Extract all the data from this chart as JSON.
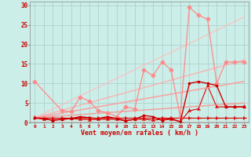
{
  "background_color": "#cceee8",
  "grid_color": "#aacccc",
  "xlabel": "Vent moyen/en rafales ( km/h )",
  "xlabel_color": "#cc0000",
  "tick_color": "#cc0000",
  "xlim": [
    -0.5,
    23.5
  ],
  "ylim": [
    0,
    31
  ],
  "yticks": [
    0,
    5,
    10,
    15,
    20,
    25,
    30
  ],
  "xticks": [
    0,
    1,
    2,
    3,
    4,
    5,
    6,
    7,
    8,
    9,
    10,
    11,
    12,
    13,
    14,
    15,
    16,
    17,
    18,
    19,
    20,
    21,
    22,
    23
  ],
  "lines": [
    {
      "x": [
        0,
        1,
        2,
        3,
        4,
        5,
        6,
        7,
        8,
        9,
        10,
        11,
        12,
        13,
        14,
        15,
        16,
        17,
        18,
        19,
        20,
        21,
        22,
        23
      ],
      "y": [
        1.2,
        1.2,
        1.2,
        1.2,
        1.2,
        1.2,
        1.2,
        1.2,
        1.2,
        1.2,
        1.2,
        1.2,
        1.2,
        1.2,
        1.2,
        1.2,
        1.2,
        1.2,
        1.2,
        1.2,
        1.2,
        1.2,
        1.2,
        1.2
      ],
      "color": "#dd0000",
      "alpha": 1.0,
      "linewidth": 0.8,
      "marker": "4",
      "markersize": 4
    },
    {
      "x": [
        0,
        1,
        2,
        3,
        4,
        5,
        6,
        7,
        8,
        9,
        10,
        11,
        12,
        13,
        14,
        15,
        16,
        17,
        18,
        19,
        20,
        21,
        22,
        23
      ],
      "y": [
        1.2,
        0.8,
        0.7,
        0.8,
        1.0,
        0.8,
        0.7,
        0.8,
        0.8,
        0.8,
        0.4,
        0.8,
        0.8,
        0.6,
        0.8,
        0.8,
        0.2,
        3.0,
        3.5,
        9.5,
        4.0,
        4.0,
        4.0,
        4.0
      ],
      "color": "#dd0000",
      "alpha": 1.0,
      "linewidth": 0.8,
      "marker": "2",
      "markersize": 4
    },
    {
      "x": [
        0,
        23
      ],
      "y": [
        1.2,
        10.5
      ],
      "color": "#ff9999",
      "alpha": 0.85,
      "linewidth": 1.2,
      "marker": null,
      "markersize": 0
    },
    {
      "x": [
        0,
        23
      ],
      "y": [
        1.2,
        16.0
      ],
      "color": "#ffaaaa",
      "alpha": 0.75,
      "linewidth": 1.2,
      "marker": null,
      "markersize": 0
    },
    {
      "x": [
        0,
        23
      ],
      "y": [
        1.2,
        27.0
      ],
      "color": "#ffbbbb",
      "alpha": 0.65,
      "linewidth": 1.2,
      "marker": null,
      "markersize": 0
    },
    {
      "x": [
        0,
        23
      ],
      "y": [
        1.2,
        5.0
      ],
      "color": "#ff8888",
      "alpha": 0.7,
      "linewidth": 1.2,
      "marker": null,
      "markersize": 0
    },
    {
      "x": [
        0,
        3,
        4,
        5,
        6,
        7,
        8,
        9,
        10,
        11,
        12,
        13,
        14,
        15,
        16,
        17,
        18,
        19,
        20,
        21,
        22,
        23
      ],
      "y": [
        10.5,
        3.0,
        2.8,
        6.5,
        5.5,
        3.0,
        2.5,
        1.5,
        4.0,
        3.5,
        13.5,
        12.0,
        15.5,
        13.5,
        1.5,
        29.5,
        27.5,
        26.5,
        10.0,
        15.5,
        15.5,
        15.5
      ],
      "color": "#ff8888",
      "alpha": 0.9,
      "linewidth": 1.0,
      "marker": "D",
      "markersize": 2.5
    },
    {
      "x": [
        0,
        1,
        2,
        3,
        4,
        5,
        6,
        7,
        8,
        9,
        10,
        11,
        12,
        13,
        14,
        15,
        16,
        17,
        18,
        19,
        20,
        21,
        22,
        23
      ],
      "y": [
        1.2,
        1.0,
        0.5,
        0.8,
        1.0,
        1.5,
        1.2,
        1.0,
        1.5,
        1.0,
        0.5,
        0.8,
        1.8,
        1.5,
        0.5,
        1.0,
        0.2,
        10.0,
        10.5,
        10.0,
        9.5,
        4.0,
        4.0,
        4.0
      ],
      "color": "#cc0000",
      "alpha": 1.0,
      "linewidth": 1.0,
      "marker": "s",
      "markersize": 2
    }
  ]
}
